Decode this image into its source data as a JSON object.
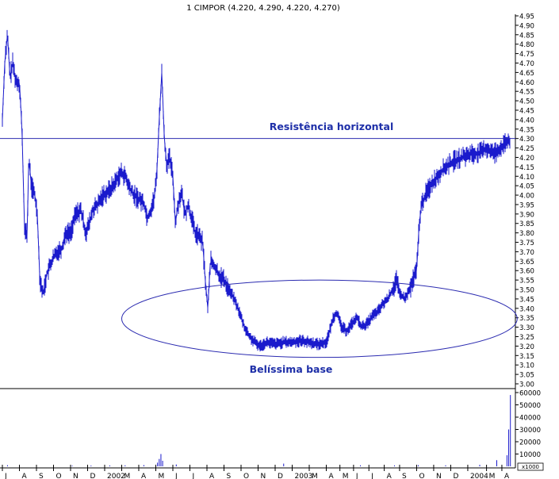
{
  "title": "1 CIMPOR (4.220, 4.290, 4.220, 4.270)",
  "colors": {
    "price": "#1a1acc",
    "resistance": "#2b2bb0",
    "annotation": "#1e2fa8",
    "axis": "#000000",
    "background": "#ffffff"
  },
  "annotations": {
    "resistance_label": "Resistência horizontal",
    "base_label": "Belíssima base"
  },
  "chart_data": [
    {
      "type": "line",
      "name": "price",
      "title": "1 CIMPOR (4.220, 4.290, 4.220, 4.270)",
      "xlabel": "",
      "ylabel": "",
      "ylim": [
        3.0,
        4.95
      ],
      "y_ticks": [
        4.95,
        4.9,
        4.85,
        4.8,
        4.75,
        4.7,
        4.65,
        4.6,
        4.55,
        4.5,
        4.45,
        4.4,
        4.35,
        4.3,
        4.25,
        4.2,
        4.15,
        4.1,
        4.05,
        4.0,
        3.95,
        3.9,
        3.85,
        3.8,
        3.75,
        3.7,
        3.65,
        3.6,
        3.55,
        3.5,
        3.45,
        3.4,
        3.35,
        3.3,
        3.25,
        3.2,
        3.15,
        3.1,
        3.05,
        3.0
      ],
      "y_tick_labels": [
        "4.95",
        "4.90",
        "4.85",
        "4.80",
        "4.75",
        "4.70",
        "4.65",
        "4.60",
        "4.55",
        "4.50",
        "4.45",
        "4.40",
        "4.35",
        "4.30",
        "4.25",
        "4.20",
        "4.15",
        "4.10",
        "4.05",
        "4.00",
        "3.95",
        "3.90",
        "3.85",
        "3.80",
        "3.75",
        "3.70",
        "3.65",
        "3.60",
        "3.55",
        "3.50",
        "3.45",
        "3.40",
        "3.35",
        "3.30",
        "3.25",
        "3.20",
        "3.15",
        "3.10",
        "3.05",
        "3.00"
      ],
      "x_ticks": [
        "J",
        "A",
        "S",
        "O",
        "N",
        "D",
        "2002",
        "M",
        "A",
        "M",
        "J",
        "J",
        "A",
        "S",
        "O",
        "N",
        "D",
        "2003",
        "M",
        "A",
        "M",
        "J",
        "J",
        "A",
        "S",
        "O",
        "N",
        "D",
        "2004",
        "M",
        "A"
      ],
      "x_tick_units": [
        0,
        1,
        2,
        3,
        4,
        5,
        6,
        7,
        8,
        9,
        10,
        11,
        12,
        13,
        14,
        15,
        16,
        17,
        18,
        19,
        19.8,
        20.6,
        21.5,
        22.4,
        23.3,
        24.3,
        25.3,
        26.3,
        27.3,
        28.4,
        29.3
      ],
      "x_range": [
        0,
        30
      ],
      "keypoints": [
        [
          0.0,
          4.4
        ],
        [
          0.15,
          4.72
        ],
        [
          0.3,
          4.85
        ],
        [
          0.45,
          4.62
        ],
        [
          0.6,
          4.7
        ],
        [
          0.8,
          4.6
        ],
        [
          1.0,
          4.6
        ],
        [
          1.15,
          4.35
        ],
        [
          1.3,
          3.82
        ],
        [
          1.45,
          3.78
        ],
        [
          1.55,
          4.2
        ],
        [
          1.7,
          4.05
        ],
        [
          1.9,
          4.0
        ],
        [
          2.05,
          3.9
        ],
        [
          2.2,
          3.55
        ],
        [
          2.4,
          3.48
        ],
        [
          2.6,
          3.58
        ],
        [
          2.9,
          3.65
        ],
        [
          3.2,
          3.7
        ],
        [
          3.5,
          3.72
        ],
        [
          3.7,
          3.8
        ],
        [
          4.0,
          3.8
        ],
        [
          4.3,
          3.9
        ],
        [
          4.6,
          3.92
        ],
        [
          4.9,
          3.8
        ],
        [
          5.1,
          3.85
        ],
        [
          5.3,
          3.92
        ],
        [
          5.6,
          3.95
        ],
        [
          5.9,
          4.0
        ],
        [
          6.2,
          4.02
        ],
        [
          6.5,
          4.05
        ],
        [
          6.8,
          4.1
        ],
        [
          7.0,
          4.12
        ],
        [
          7.2,
          4.1
        ],
        [
          7.4,
          4.05
        ],
        [
          7.7,
          4.0
        ],
        [
          8.0,
          3.98
        ],
        [
          8.3,
          3.96
        ],
        [
          8.5,
          3.88
        ],
        [
          8.7,
          3.92
        ],
        [
          8.9,
          3.98
        ],
        [
          9.05,
          4.1
        ],
        [
          9.2,
          4.4
        ],
        [
          9.35,
          4.65
        ],
        [
          9.5,
          4.3
        ],
        [
          9.65,
          4.15
        ],
        [
          9.8,
          4.2
        ],
        [
          10.0,
          4.1
        ],
        [
          10.15,
          3.85
        ],
        [
          10.3,
          3.95
        ],
        [
          10.5,
          4.02
        ],
        [
          10.7,
          3.9
        ],
        [
          10.9,
          3.95
        ],
        [
          11.1,
          3.88
        ],
        [
          11.3,
          3.8
        ],
        [
          11.55,
          3.78
        ],
        [
          11.75,
          3.75
        ],
        [
          11.9,
          3.55
        ],
        [
          12.05,
          3.4
        ],
        [
          12.2,
          3.65
        ],
        [
          12.45,
          3.62
        ],
        [
          12.7,
          3.58
        ],
        [
          13.0,
          3.55
        ],
        [
          13.3,
          3.5
        ],
        [
          13.6,
          3.45
        ],
        [
          13.9,
          3.38
        ],
        [
          14.2,
          3.3
        ],
        [
          14.5,
          3.25
        ],
        [
          14.8,
          3.22
        ],
        [
          15.1,
          3.2
        ],
        [
          15.5,
          3.22
        ],
        [
          16.0,
          3.21
        ],
        [
          16.5,
          3.22
        ],
        [
          17.0,
          3.22
        ],
        [
          17.5,
          3.23
        ],
        [
          18.0,
          3.22
        ],
        [
          18.5,
          3.21
        ],
        [
          19.0,
          3.22
        ],
        [
          19.2,
          3.28
        ],
        [
          19.4,
          3.35
        ],
        [
          19.6,
          3.38
        ],
        [
          19.9,
          3.3
        ],
        [
          20.2,
          3.28
        ],
        [
          20.5,
          3.32
        ],
        [
          20.8,
          3.35
        ],
        [
          21.1,
          3.3
        ],
        [
          21.4,
          3.32
        ],
        [
          21.7,
          3.36
        ],
        [
          22.0,
          3.38
        ],
        [
          22.3,
          3.42
        ],
        [
          22.6,
          3.45
        ],
        [
          22.9,
          3.5
        ],
        [
          23.1,
          3.55
        ],
        [
          23.3,
          3.48
        ],
        [
          23.6,
          3.45
        ],
        [
          23.9,
          3.5
        ],
        [
          24.1,
          3.55
        ],
        [
          24.3,
          3.6
        ],
        [
          24.45,
          3.85
        ],
        [
          24.6,
          3.95
        ],
        [
          24.8,
          4.0
        ],
        [
          25.1,
          4.05
        ],
        [
          25.5,
          4.1
        ],
        [
          26.0,
          4.15
        ],
        [
          26.5,
          4.18
        ],
        [
          27.0,
          4.2
        ],
        [
          27.5,
          4.22
        ],
        [
          28.0,
          4.22
        ],
        [
          28.4,
          4.25
        ],
        [
          28.8,
          4.22
        ],
        [
          29.2,
          4.25
        ],
        [
          29.5,
          4.27
        ],
        [
          29.7,
          4.29
        ],
        [
          29.8,
          4.27
        ]
      ],
      "overlays": {
        "resistance_level": 4.3,
        "base_ellipse": {
          "x_center": 18.6,
          "y_center": 3.345,
          "x_radius": 11.6,
          "y_radius": 0.205
        }
      }
    },
    {
      "type": "bar",
      "name": "volume",
      "ylim": [
        0,
        60000
      ],
      "y_ticks": [
        60000,
        50000,
        40000,
        30000,
        20000,
        10000
      ],
      "y_tick_labels": [
        "60000",
        "50000",
        "40000",
        "30000",
        "20000",
        "10000"
      ],
      "unit_label": "x1000",
      "bars": [
        [
          0.3,
          900
        ],
        [
          1.0,
          1200
        ],
        [
          2.0,
          700
        ],
        [
          3.0,
          600
        ],
        [
          4.1,
          500
        ],
        [
          5.2,
          600
        ],
        [
          6.3,
          700
        ],
        [
          7.2,
          800
        ],
        [
          8.3,
          1000
        ],
        [
          9.1,
          3000
        ],
        [
          9.2,
          6000
        ],
        [
          9.3,
          10000
        ],
        [
          9.4,
          4500
        ],
        [
          10.2,
          1500
        ],
        [
          12.0,
          800
        ],
        [
          14.0,
          700
        ],
        [
          16.5,
          2200
        ],
        [
          19.0,
          600
        ],
        [
          21.0,
          800
        ],
        [
          23.0,
          700
        ],
        [
          24.4,
          900
        ],
        [
          26.0,
          800
        ],
        [
          28.0,
          1200
        ],
        [
          29.0,
          5000
        ],
        [
          29.6,
          9000
        ],
        [
          29.7,
          30000
        ],
        [
          29.8,
          58000
        ]
      ]
    }
  ]
}
